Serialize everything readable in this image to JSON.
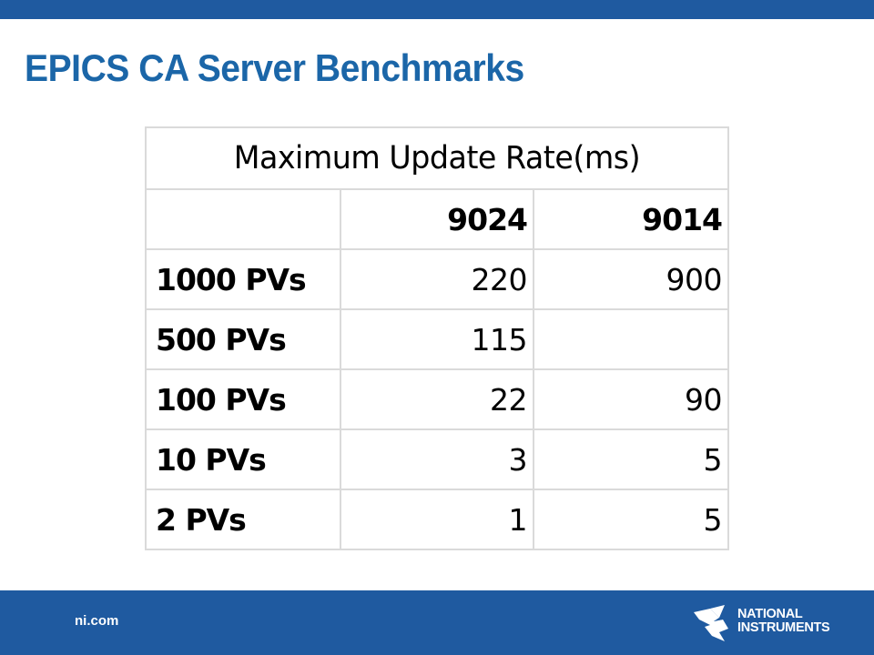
{
  "slide": {
    "title": "EPICS CA Server Benchmarks"
  },
  "table": {
    "title": "Maximum Update Rate(ms)",
    "columns": [
      "",
      "9024",
      "9014"
    ],
    "rows": [
      {
        "label": "1000 PVs",
        "values": [
          "220",
          "900"
        ]
      },
      {
        "label": "500 PVs",
        "values": [
          "115",
          ""
        ]
      },
      {
        "label": "100 PVs",
        "values": [
          "22",
          "90"
        ]
      },
      {
        "label": "10 PVs",
        "values": [
          "3",
          "5"
        ]
      },
      {
        "label": "2 PVs",
        "values": [
          "1",
          "5"
        ]
      }
    ]
  },
  "footer": {
    "url": "ni.com",
    "logo_line1": "NATIONAL",
    "logo_line2": "INSTRUMENTS",
    "logo_icon": "ni-eagle-icon"
  },
  "colors": {
    "brand_blue": "#1f5aa0",
    "title_blue": "#1b66a8"
  }
}
